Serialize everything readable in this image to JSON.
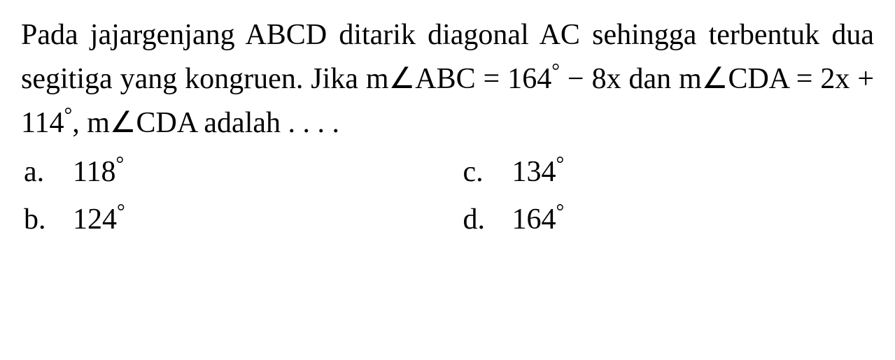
{
  "question": {
    "line1": "Pada jajargenjang ABCD ditarik diagonal AC",
    "line2": "sehingga terbentuk dua segitiga yang kongruen.",
    "line3_prefix": "Jika m",
    "line3_angle1": "ABC = 164",
    "line3_mid": " − 8x dan m",
    "line3_angle2": "CDA = 2x +",
    "line4_prefix": "114",
    "line4_mid": ", m",
    "line4_angle": "CDA adalah . . . .",
    "fontsize": 42,
    "color": "#000000",
    "background": "#ffffff"
  },
  "options": {
    "a": {
      "letter": "a.",
      "value": "118"
    },
    "b": {
      "letter": "b.",
      "value": "124"
    },
    "c": {
      "letter": "c.",
      "value": "134"
    },
    "d": {
      "letter": "d.",
      "value": "164"
    }
  },
  "symbols": {
    "angle": "∠",
    "degree": "°"
  }
}
